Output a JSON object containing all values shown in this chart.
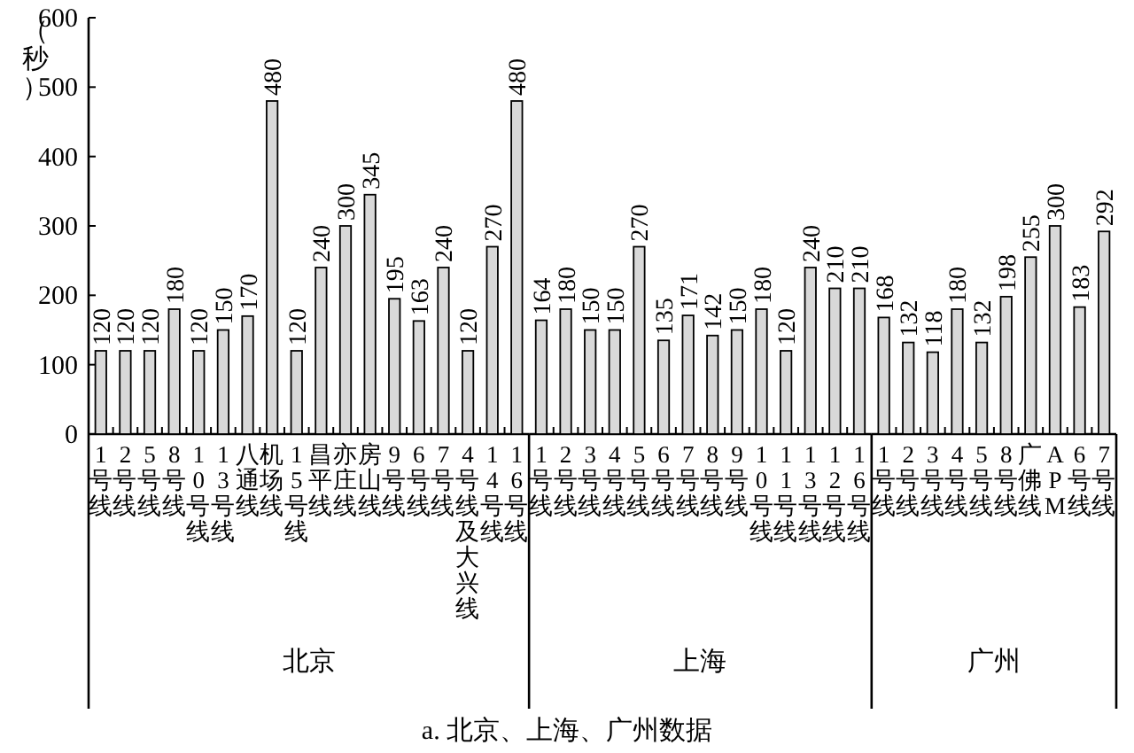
{
  "chart_data": [
    {
      "type": "bar",
      "xlabel": "北京",
      "ylabel": "（秒）",
      "ylim": [
        0,
        600
      ],
      "yticks": [
        0,
        100,
        200,
        300,
        400,
        500,
        600
      ],
      "color": "#d9d9d9",
      "data_labels": true,
      "categories": [
        "1号线",
        "2号线",
        "5号线",
        "8号线",
        "10号线",
        "13号线",
        "八通线",
        "机场线",
        "15号线",
        "昌平线",
        "亦庄线",
        "房山线",
        "9号线",
        "6号线",
        "7号线",
        "4号线及大兴线",
        "14号线",
        "16号线"
      ],
      "values": [
        120,
        120,
        120,
        180,
        120,
        150,
        170,
        480,
        120,
        240,
        300,
        345,
        195,
        163,
        240,
        120,
        270,
        480
      ]
    },
    {
      "type": "bar",
      "xlabel": "上海",
      "ylim": [
        0,
        600
      ],
      "tick_labels": "x",
      "color": "#d9d9d9",
      "data_labels": true,
      "annotations": [
        "a. 北京、上海、广州数据"
      ],
      "categories": [
        "1号线",
        "2号线",
        "3号线",
        "4号线",
        "5号线",
        "6号线",
        "7号线",
        "8号线",
        "9号线",
        "10号线",
        "11号线",
        "13号线",
        "12号线",
        "16号线"
      ],
      "values": [
        164,
        180,
        150,
        150,
        270,
        135,
        171,
        142,
        150,
        180,
        120,
        240,
        210,
        210
      ]
    },
    {
      "type": "bar",
      "xlabel": "广州",
      "ylim": [
        0,
        600
      ],
      "tick_labels": "x",
      "color": "#d9d9d9",
      "data_labels": true,
      "categories": [
        "1号线",
        "2号线",
        "3号线",
        "4号线",
        "5号线",
        "8号线",
        "广佛线",
        "APM",
        "6号线",
        "7号线"
      ],
      "values": [
        168,
        132,
        118,
        180,
        132,
        198,
        255,
        300,
        183,
        292
      ]
    }
  ]
}
